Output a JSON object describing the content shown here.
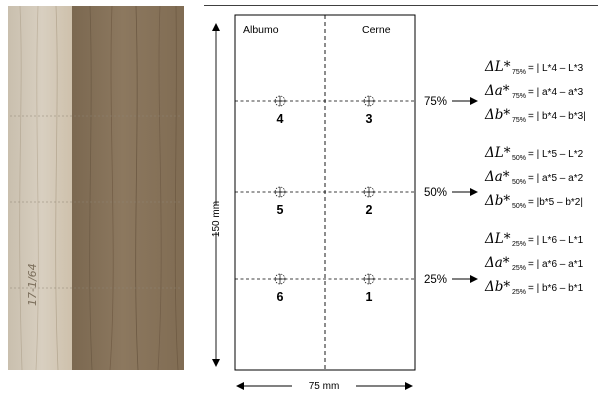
{
  "photo": {
    "sapwood_color": "#d2c7b6",
    "heartwood_color": "#86725a",
    "handwriting": "17-1/64"
  },
  "board": {
    "sapwood_label": "Albumo",
    "heartwood_label": "Cerne",
    "height_label": "150 mm",
    "width_label": "75 mm"
  },
  "points": [
    {
      "id": "4",
      "side": "sapwood",
      "level": "75%"
    },
    {
      "id": "3",
      "side": "heartwood",
      "level": "75%"
    },
    {
      "id": "5",
      "side": "sapwood",
      "level": "50%"
    },
    {
      "id": "2",
      "side": "heartwood",
      "level": "50%"
    },
    {
      "id": "6",
      "side": "sapwood",
      "level": "25%"
    },
    {
      "id": "1",
      "side": "heartwood",
      "level": "25%"
    }
  ],
  "levels": [
    {
      "label": "75%",
      "equations": [
        {
          "sym": "ΔL*",
          "sub": "75%",
          "rhs": "= | L*4 – L*3"
        },
        {
          "sym": "Δa*",
          "sub": "75%",
          "rhs": "= | a*4 – a*3"
        },
        {
          "sym": "Δb*",
          "sub": "75%",
          "rhs": "= | b*4 – b*3|"
        }
      ]
    },
    {
      "label": "50%",
      "equations": [
        {
          "sym": "ΔL*",
          "sub": "50%",
          "rhs": "= | L*5 – L*2"
        },
        {
          "sym": "Δa*",
          "sub": "50%",
          "rhs": "= | a*5 – a*2"
        },
        {
          "sym": "Δb*",
          "sub": "50%",
          "rhs": "= |b*5 – b*2|"
        }
      ]
    },
    {
      "label": "25%",
      "equations": [
        {
          "sym": "ΔL*",
          "sub": "25%",
          "rhs": "= | L*6 – L*1"
        },
        {
          "sym": "Δa*",
          "sub": "25%",
          "rhs": "= | a*6 – a*1"
        },
        {
          "sym": "Δb*",
          "sub": "25%",
          "rhs": "= | b*6 – b*1"
        }
      ]
    }
  ]
}
